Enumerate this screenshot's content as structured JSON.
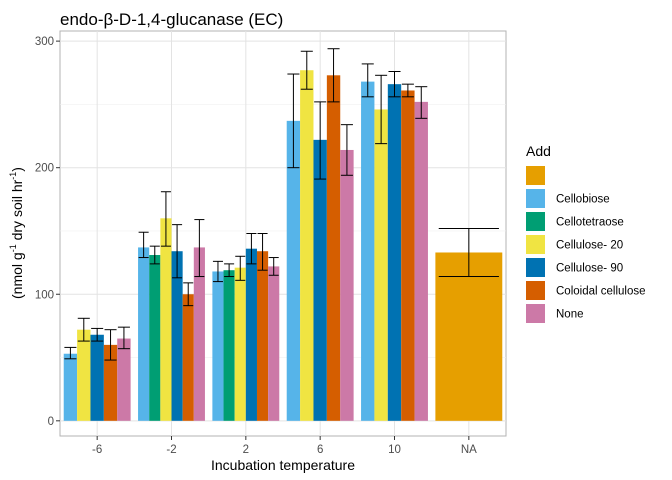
{
  "chart_data": {
    "type": "bar",
    "title": "endo-β-D-1,4-glucanase (EC)",
    "xlabel": "Incubation temperature",
    "ylabel_parts": {
      "pre": "(nmol g",
      "sup1": "-1",
      "mid": " dry soil hr",
      "sup2": "-1",
      "post": ")"
    },
    "categories": [
      "-6",
      "-2",
      "2",
      "6",
      "10",
      "NA"
    ],
    "ylim": [
      -12,
      308
    ],
    "yticks": [
      0,
      100,
      200,
      300
    ],
    "grid": true,
    "legend_title": "Add",
    "legend_position": "right",
    "series": [
      {
        "name": "",
        "color": "#E69F00",
        "values": [
          null,
          null,
          null,
          null,
          null,
          133
        ],
        "errors": [
          null,
          null,
          null,
          null,
          null,
          [
            114,
            152
          ]
        ]
      },
      {
        "name": "Cellobiose",
        "color": "#56B4E9",
        "values": [
          53,
          137,
          118,
          237,
          268,
          null
        ],
        "errors": [
          [
            49,
            58
          ],
          [
            129,
            149
          ],
          [
            110,
            126
          ],
          [
            200,
            274
          ],
          [
            256,
            282
          ],
          null
        ]
      },
      {
        "name": "Cellotetraose",
        "color": "#009E73",
        "values": [
          null,
          131,
          119,
          null,
          null,
          null
        ],
        "errors": [
          null,
          [
            124,
            138
          ],
          [
            114,
            124
          ],
          null,
          null,
          null
        ]
      },
      {
        "name": "Cellulose- 20",
        "color": "#F0E442",
        "values": [
          72,
          160,
          121,
          277,
          246,
          null
        ],
        "errors": [
          [
            63,
            81
          ],
          [
            138,
            181
          ],
          [
            111,
            130
          ],
          [
            262,
            292
          ],
          [
            219,
            273
          ],
          null
        ]
      },
      {
        "name": "Cellulose- 90",
        "color": "#0072B2",
        "values": [
          68,
          134,
          136,
          222,
          266,
          null
        ],
        "errors": [
          [
            63,
            73
          ],
          [
            113,
            155
          ],
          [
            124,
            148
          ],
          [
            191,
            252
          ],
          [
            256,
            276
          ],
          null
        ]
      },
      {
        "name": "Coloidal cellulose",
        "color": "#D55E00",
        "values": [
          60,
          100,
          134,
          273,
          261,
          null
        ],
        "errors": [
          [
            48,
            72
          ],
          [
            91,
            109
          ],
          [
            119,
            148
          ],
          [
            252,
            294
          ],
          [
            256,
            266
          ],
          null
        ]
      },
      {
        "name": "None",
        "color": "#CC79A7",
        "values": [
          65,
          137,
          122,
          214,
          252,
          null
        ],
        "errors": [
          [
            57,
            74
          ],
          [
            114,
            159
          ],
          [
            115,
            129
          ],
          [
            194,
            234
          ],
          [
            239,
            264
          ],
          null
        ]
      }
    ],
    "category_bars": [
      [
        "Cellobiose",
        "Cellulose- 20",
        "Cellulose- 90",
        "Coloidal cellulose",
        "None"
      ],
      [
        "Cellobiose",
        "Cellotetraose",
        "Cellulose- 20",
        "Cellulose- 90",
        "Coloidal cellulose",
        "None"
      ],
      [
        "Cellobiose",
        "Cellotetraose",
        "Cellulose- 20",
        "Cellulose- 90",
        "Coloidal cellulose",
        "None"
      ],
      [
        "Cellobiose",
        "Cellulose- 20",
        "Cellulose- 90",
        "Coloidal cellulose",
        "None"
      ],
      [
        "Cellobiose",
        "Cellulose- 20",
        "Cellulose- 90",
        "Coloidal cellulose",
        "None"
      ],
      [
        ""
      ]
    ]
  }
}
